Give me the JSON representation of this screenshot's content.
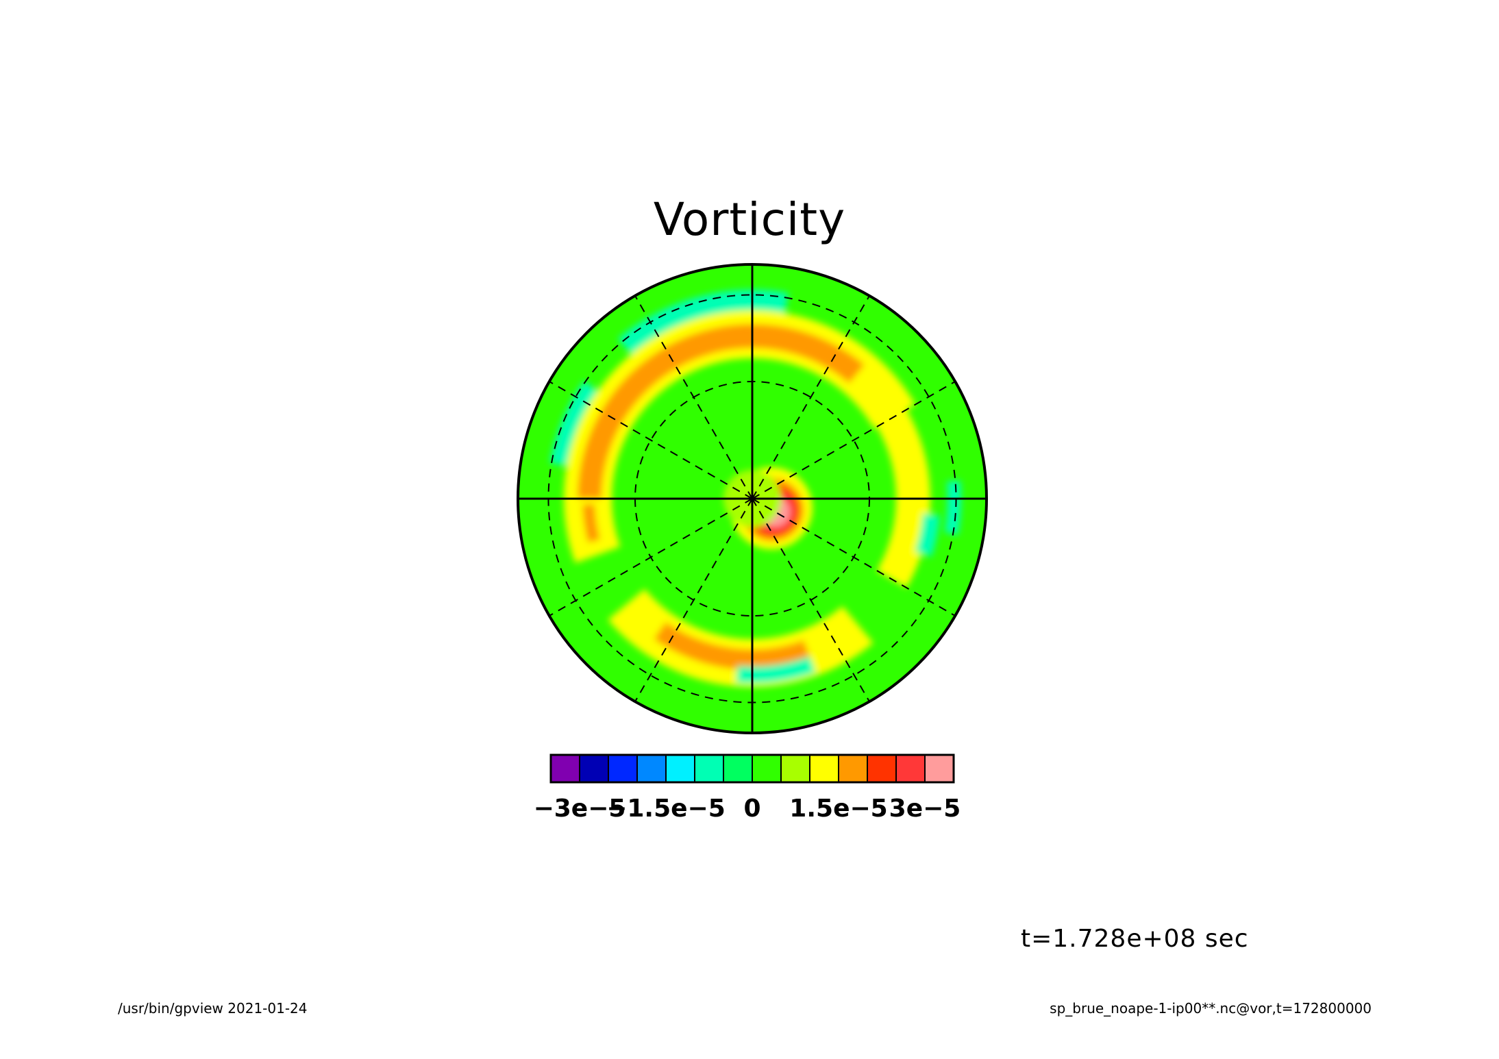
{
  "title": "Vorticity",
  "time_label": "t=1.728e+08 sec",
  "footer": {
    "left": "/usr/bin/gpview  2021-01-24",
    "right": "sp_brue_noape-1-ip00**.nc@vor,t=172800000"
  },
  "chart_data": {
    "type": "heatmap",
    "projection": "polar stereographic",
    "variable": "vor",
    "time_seconds": 172800000,
    "grid_lines": {
      "meridians_solid_deg": [
        0,
        90,
        180,
        270
      ],
      "meridians_dashed_deg": [
        30,
        60,
        120,
        150,
        210,
        240,
        300,
        330
      ],
      "latitude_circles_dashed": 2
    },
    "colorbar": {
      "levels": [
        -3.5e-05,
        -3e-05,
        -2.5e-05,
        -2e-05,
        -1.5e-05,
        -1e-05,
        -5e-06,
        0,
        5e-06,
        1e-05,
        1.5e-05,
        2e-05,
        2.5e-05,
        3e-05,
        3.5e-05
      ],
      "colors": [
        "#8000b0",
        "#0000b4",
        "#0028ff",
        "#0088ff",
        "#00f0ff",
        "#00ffb4",
        "#00ff60",
        "#30ff00",
        "#a8ff00",
        "#ffff00",
        "#ff9900",
        "#ff3300",
        "#ff3838",
        "#ff9c9c"
      ],
      "tick_labels": [
        {
          "text": "−3e−5",
          "value": -3e-05
        },
        {
          "text": "−1.5e−5",
          "value": -1.5e-05
        },
        {
          "text": "0",
          "value": 0
        },
        {
          "text": "1.5e−5",
          "value": 1.5e-05
        },
        {
          "text": "3e−5",
          "value": 3e-05
        }
      ]
    },
    "field_features": {
      "background_level": 5e-06,
      "max_value": 3e-05,
      "max_location": "just southeast of the pole",
      "rings": [
        {
          "level": 1.5e-05,
          "location": "upper-left arc and bottom arc"
        },
        {
          "level": 1e-05,
          "location": "broad ring between latitude circles"
        },
        {
          "level": -5e-06,
          "location": "arcs near outer edge and central ring"
        },
        {
          "level": -1e-05,
          "location": "small patches near top and bottom"
        }
      ]
    }
  }
}
